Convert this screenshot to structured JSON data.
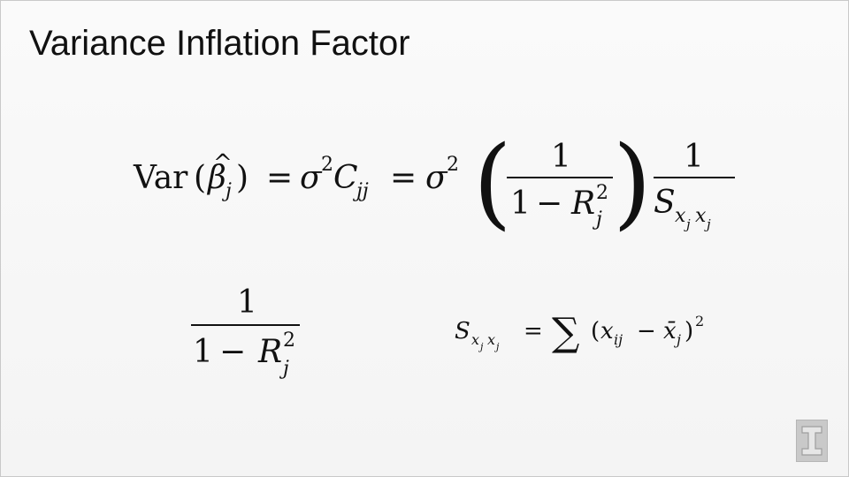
{
  "slide": {
    "title": "Variance Inflation Factor",
    "accent_color": "#111111",
    "logo_icon": "university-block-i-icon"
  },
  "equation_main": {
    "var": "Var",
    "beta": "β",
    "hat": "^",
    "sub_j": "j",
    "eq": "=",
    "sigma": "σ",
    "sq": "2",
    "C": "C",
    "sub_jj": "jj",
    "one": "1",
    "minus": "−",
    "R": "R",
    "S": "S",
    "sub_x": "x",
    "paren_open": "(",
    "paren_close": ")",
    "big_paren_open": "(",
    "big_paren_close": ")"
  },
  "equation_vif": {
    "one": "1",
    "minus": "−",
    "R": "R",
    "sq": "2",
    "sub_j": "j"
  },
  "equation_sxx": {
    "S": "S",
    "sub_x": "x",
    "sub_j": "j",
    "eq": "=",
    "sum": "∑",
    "paren_open": "(",
    "x": "x",
    "sub_ij": "ij",
    "minus": "−",
    "xbar": "x̄",
    "paren_close": ")",
    "sq": "2"
  }
}
